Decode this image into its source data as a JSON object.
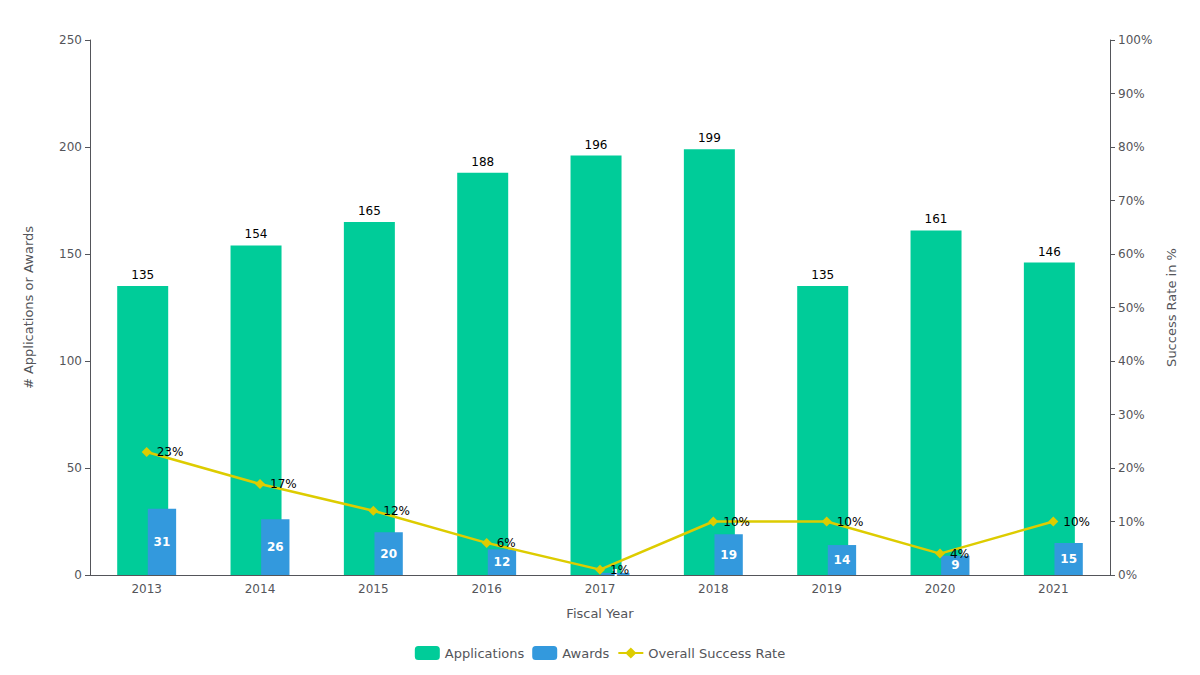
{
  "chart_data": {
    "type": "bar",
    "categories": [
      "2013",
      "2014",
      "2015",
      "2016",
      "2017",
      "2018",
      "2019",
      "2020",
      "2021"
    ],
    "xlabel": "Fiscal Year",
    "ylabel": "# Applications or Awards",
    "y2label": "Success Rate in %",
    "ylim": [
      0,
      250
    ],
    "yticks": [
      0,
      50,
      100,
      150,
      200,
      250
    ],
    "y2lim": [
      0,
      1.0
    ],
    "y2ticks": [
      {
        "value": 0,
        "label": "0%"
      },
      {
        "value": 0.1,
        "label": "10%"
      },
      {
        "value": 0.2,
        "label": "20%"
      },
      {
        "value": 0.3,
        "label": "30%"
      },
      {
        "value": 0.4,
        "label": "40%"
      },
      {
        "value": 0.5,
        "label": "50%"
      },
      {
        "value": 0.6,
        "label": "60%"
      },
      {
        "value": 0.7,
        "label": "70%"
      },
      {
        "value": 0.8,
        "label": "80%"
      },
      {
        "value": 0.9,
        "label": "90%"
      },
      {
        "value": 1.0,
        "label": "100%"
      }
    ],
    "grid": false,
    "legend": "bottom",
    "data_labels": true,
    "series": [
      {
        "name": "Applications",
        "type": "bar",
        "color": "#00CC99",
        "values": [
          135,
          154,
          165,
          188,
          196,
          199,
          135,
          161,
          146
        ]
      },
      {
        "name": "Awards",
        "type": "bar",
        "color": "#3399DD",
        "values": [
          31,
          26,
          20,
          12,
          1,
          19,
          14,
          9,
          15
        ]
      },
      {
        "name": "Overall Success Rate",
        "type": "line",
        "axis": "y2",
        "color": "#DDCC00",
        "marker": "diamond",
        "values": [
          0.23,
          0.17,
          0.12,
          0.06,
          0.01,
          0.1,
          0.1,
          0.04,
          0.1
        ],
        "value_labels": [
          "23%",
          "17%",
          "12%",
          "6%",
          "1%",
          "10%",
          "10%",
          "4%",
          "10%"
        ]
      }
    ]
  }
}
